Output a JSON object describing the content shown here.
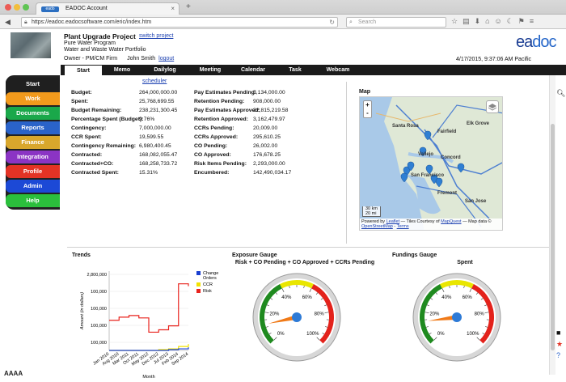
{
  "browser": {
    "tab_title": "EADOC Account",
    "url": "https://eadoc.eadocsoftware.com/eric/index.htm",
    "search_placeholder": "Search",
    "favicon_text": "eado"
  },
  "header": {
    "project_title": "Plant Upgrade Project",
    "switch_link": "switch project",
    "program": "Pure Water Program",
    "portfolio": "Water and Waste Water Portfolio",
    "owner": "Owner - PM/CM Firm",
    "user": "John Smith",
    "logout": "logout",
    "datetime": "4/17/2015, 9:37:06 AM  Pacific",
    "logo_ea": "ea",
    "logo_doc": "doc"
  },
  "tabs": [
    "Start",
    "Memo",
    "Dailylog",
    "Meeting",
    "Calendar",
    "Task",
    "Webcam"
  ],
  "sidebar": {
    "items": [
      {
        "label": "Start",
        "color": "#1f1f1f"
      },
      {
        "label": "Work",
        "color": "#f29a1c"
      },
      {
        "label": "Documents",
        "color": "#1aa84a"
      },
      {
        "label": "Reports",
        "color": "#2a63c9"
      },
      {
        "label": "Finance",
        "color": "#d9a72c"
      },
      {
        "label": "Integration",
        "color": "#8b34c4"
      },
      {
        "label": "Profile",
        "color": "#e33325"
      },
      {
        "label": "Admin",
        "color": "#1c49d6"
      },
      {
        "label": "Help",
        "color": "#2bbf3c"
      }
    ],
    "font_sizer": "AAAA"
  },
  "scheduler_link": "scheduler",
  "budget_left": [
    {
      "label": "Budget:",
      "value": "264,000,000.00"
    },
    {
      "label": "Spent:",
      "value": "25,768,699.55"
    },
    {
      "label": "Budget Remaining:",
      "value": "238,231,300.45"
    },
    {
      "label": "Percentage Spent (Budget):",
      "value": "9.76%"
    },
    {
      "label": "Contingency:",
      "value": "7,000,000.00"
    },
    {
      "label": "CCR Spent:",
      "value": "19,599.55"
    },
    {
      "label": "Contingency Remaining:",
      "value": "6,980,400.45"
    },
    {
      "label": "Contracted:",
      "value": "168,082,055.47"
    },
    {
      "label": "Contracted+CO:",
      "value": "168,258,733.72"
    },
    {
      "label": "Contracted Spent:",
      "value": "15.31%"
    }
  ],
  "budget_right": [
    {
      "label": "Pay Estimates Pending:",
      "value": "5,134,000.00"
    },
    {
      "label": "Retention Pending:",
      "value": "908,000.00"
    },
    {
      "label": "Pay Estimates Approved:",
      "value": "22,815,219.58"
    },
    {
      "label": "Retention Approved:",
      "value": "3,162,479.97"
    },
    {
      "label": "CCRs Pending:",
      "value": "20,009.00"
    },
    {
      "label": "CCRs Approved:",
      "value": "295,610.25"
    },
    {
      "label": "CO Pending:",
      "value": "26,002.00"
    },
    {
      "label": "CO Approved:",
      "value": "176,678.25"
    },
    {
      "label": "Risk Items Pending:",
      "value": "2,293,000.00"
    },
    {
      "label": "Encumbered:",
      "value": "142,490,034.17"
    }
  ],
  "map": {
    "title": "Map",
    "labels": [
      "Santa Rosa",
      "Fairfield",
      "Vallejo",
      "Concord",
      "San Francisco",
      "Fremont",
      "San Jose",
      "Elk Grove"
    ],
    "scale_km": "30 km",
    "scale_mi": "20 mi",
    "attribution_prefix": "Powered by",
    "attribution_leaflet": "Leaflet",
    "attribution_mid": "— Tiles Courtesy of",
    "attribution_mapquest": "MapQuest",
    "attribution_suffix": "— Map data ©",
    "attribution_osm": "OpenStreetMap",
    "attribution_terms": "Terms",
    "zoom_in": "+",
    "zoom_out": "-"
  },
  "trends": {
    "title": "Trends",
    "ylabel": "Amount (in dollars)",
    "xlabel": "Month",
    "y_ticks": [
      "2,800,000",
      "100,000",
      "100,000",
      "100,000",
      "100,000"
    ],
    "x_ticks": [
      "Jan 2010",
      "Aug 2010",
      "Mar 2011",
      "Oct 2011",
      "May 2012",
      "Dec 2012",
      "Jul 2013",
      "Feb 2014",
      "Sep 2014"
    ],
    "legend": [
      "Change Orders",
      "CCR",
      "Risk"
    ],
    "colors": {
      "change_orders": "#1a3fd0",
      "ccr": "#f2e200",
      "risk": "#e8231d"
    }
  },
  "chart_data": {
    "type": "line",
    "title": "Trends",
    "xlabel": "Month",
    "ylabel": "Amount (in dollars)",
    "x": [
      "Jan 2010",
      "Aug 2010",
      "Mar 2011",
      "Oct 2011",
      "May 2012",
      "Dec 2012",
      "Jul 2013",
      "Feb 2014",
      "Sep 2014"
    ],
    "series": [
      {
        "name": "Risk",
        "values": [
          0.38,
          0.42,
          0.44,
          0.41,
          0.23,
          0.26,
          0.31,
          0.84,
          0.81
        ]
      },
      {
        "name": "CCR",
        "values": [
          0.0,
          0.0,
          0.0,
          0.0,
          0.0,
          0.01,
          0.02,
          0.05,
          0.08
        ]
      },
      {
        "name": "Change Orders",
        "values": [
          0.0,
          0.0,
          0.0,
          0.0,
          0.0,
          0.0,
          0.01,
          0.02,
          0.04
        ]
      }
    ],
    "legend": "right"
  },
  "exposure_gauge": {
    "title": "Exposure Gauge",
    "subtitle": "Risk + CO Pending + CO Approved + CCRs Pending",
    "ticks": [
      "0%",
      "20%",
      "40%",
      "60%",
      "80%",
      "100%"
    ],
    "value_fraction": 0.12
  },
  "funding_gauge": {
    "title": "Fundings Gauge",
    "subtitle": "Spent",
    "ticks": [
      "0%",
      "20%",
      "40%",
      "60%",
      "80%",
      "100%"
    ],
    "value_fraction": 0.14
  },
  "gauge_colors": {
    "green": "#1f8a1f",
    "yellow": "#e9e600",
    "red": "#e3221b",
    "needle": "#f07a18",
    "hub": "#2d7ad6"
  }
}
